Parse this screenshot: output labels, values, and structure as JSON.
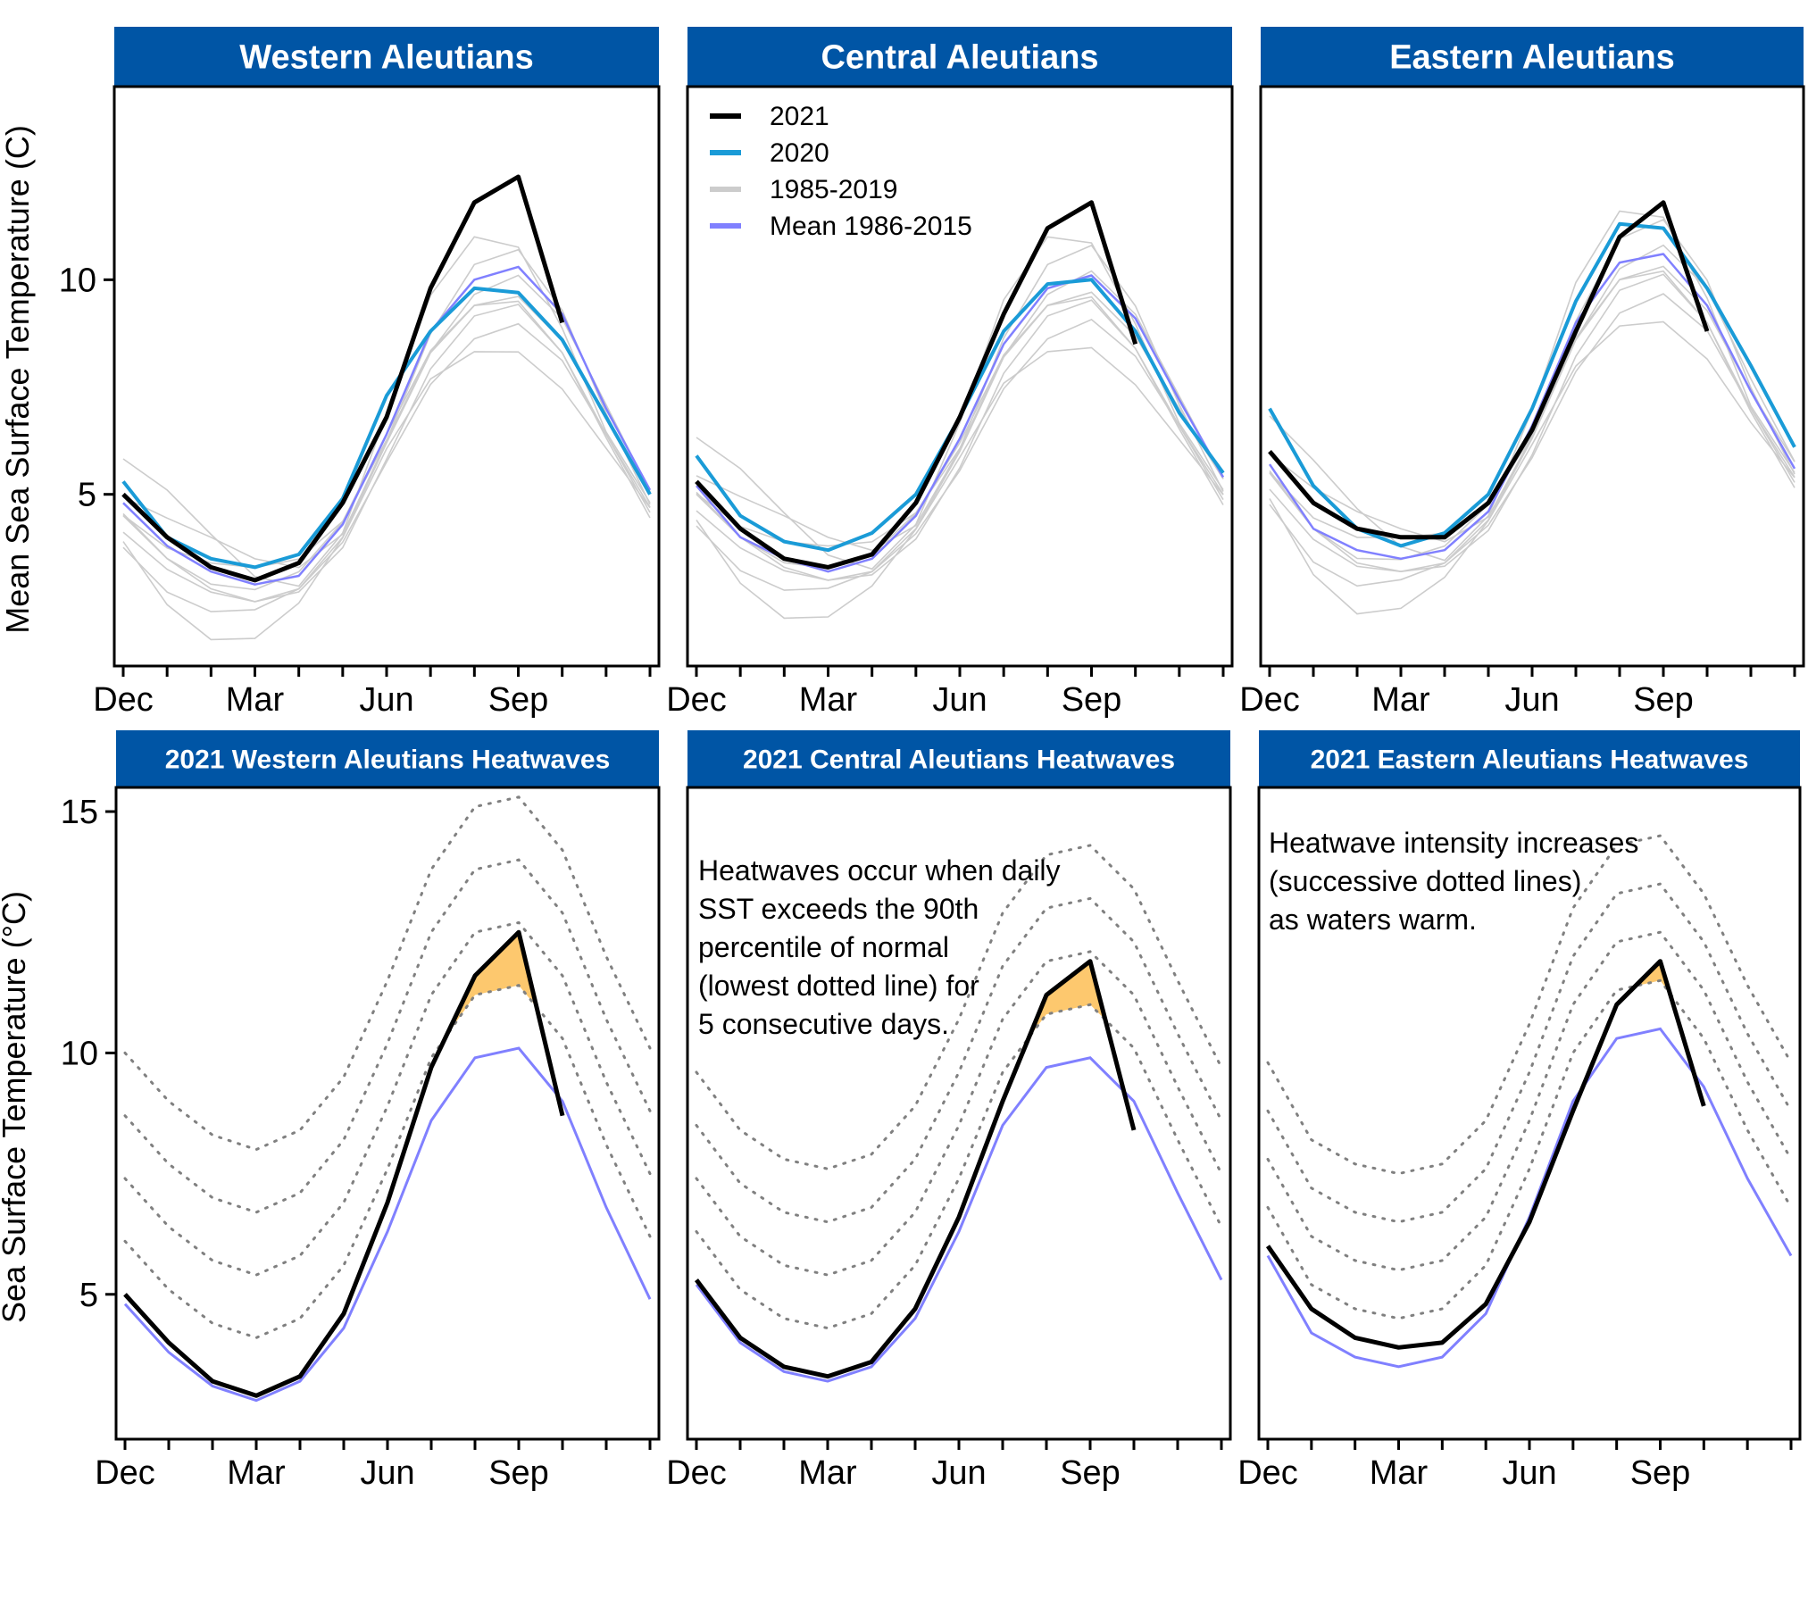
{
  "figure": {
    "top_ylabel": "Mean Sea Surface Temperature (C)",
    "bottom_ylabel": "Sea Surface Temperature (°C)"
  },
  "chart_data": [
    {
      "type": "line",
      "title": "Western Aleutians",
      "x": [
        "Dec",
        "Jan",
        "Feb",
        "Mar",
        "Apr",
        "May",
        "Jun",
        "Jul",
        "Aug",
        "Sep",
        "Oct",
        "Nov",
        "Dec"
      ],
      "xtick_labels": [
        "Dec",
        "Mar",
        "Jun",
        "Sep"
      ],
      "ylim": [
        1.0,
        14.5
      ],
      "yticks": [
        5,
        10
      ],
      "series": [
        {
          "name": "2021",
          "color": "#000000",
          "values": [
            5.0,
            4.0,
            3.3,
            3.0,
            3.4,
            4.8,
            6.8,
            9.8,
            11.8,
            12.4,
            9.0,
            null,
            null
          ]
        },
        {
          "name": "2020",
          "color": "#1a9bd7",
          "values": [
            5.3,
            4.0,
            3.5,
            3.3,
            3.6,
            4.9,
            7.3,
            8.8,
            9.8,
            9.7,
            8.6,
            6.8,
            5.0
          ]
        },
        {
          "name": "1985-2019",
          "color": "#cccccc",
          "values": [
            4.5,
            3.5,
            2.8,
            2.5,
            2.8,
            4.0,
            6.2,
            8.3,
            9.4,
            9.5,
            8.3,
            6.4,
            4.7
          ]
        },
        {
          "name": "Mean 1986-2015",
          "color": "#8080ff",
          "values": [
            4.8,
            3.8,
            3.2,
            2.9,
            3.1,
            4.3,
            6.4,
            8.8,
            10.0,
            10.3,
            9.2,
            7.0,
            5.1
          ]
        }
      ]
    },
    {
      "type": "line",
      "title": "Central Aleutians",
      "x": [
        "Dec",
        "Jan",
        "Feb",
        "Mar",
        "Apr",
        "May",
        "Jun",
        "Jul",
        "Aug",
        "Sep",
        "Oct",
        "Nov",
        "Dec"
      ],
      "xtick_labels": [
        "Dec",
        "Mar",
        "Jun",
        "Sep"
      ],
      "ylim": [
        1.0,
        14.5
      ],
      "yticks": [
        5,
        10
      ],
      "series": [
        {
          "name": "2021",
          "color": "#000000",
          "values": [
            5.3,
            4.2,
            3.5,
            3.3,
            3.6,
            4.8,
            6.8,
            9.2,
            11.2,
            11.8,
            8.5,
            null,
            null
          ]
        },
        {
          "name": "2020",
          "color": "#1a9bd7",
          "values": [
            5.9,
            4.5,
            3.9,
            3.7,
            4.1,
            5.0,
            6.8,
            8.8,
            9.9,
            10.0,
            8.8,
            6.9,
            5.5
          ]
        },
        {
          "name": "1985-2019",
          "color": "#cccccc",
          "values": [
            5.0,
            4.0,
            3.3,
            3.0,
            3.2,
            4.2,
            6.0,
            8.2,
            9.4,
            9.6,
            8.4,
            6.6,
            5.0
          ]
        },
        {
          "name": "Mean 1986-2015",
          "color": "#8080ff",
          "values": [
            5.2,
            4.0,
            3.5,
            3.2,
            3.5,
            4.5,
            6.3,
            8.5,
            9.8,
            10.1,
            9.1,
            7.2,
            5.4
          ]
        }
      ]
    },
    {
      "type": "line",
      "title": "Eastern Aleutians",
      "x": [
        "Dec",
        "Jan",
        "Feb",
        "Mar",
        "Apr",
        "May",
        "Jun",
        "Jul",
        "Aug",
        "Sep",
        "Oct",
        "Nov",
        "Dec"
      ],
      "xtick_labels": [
        "Dec",
        "Mar",
        "Jun",
        "Sep"
      ],
      "ylim": [
        1.0,
        14.5
      ],
      "yticks": [
        5,
        10
      ],
      "series": [
        {
          "name": "2021",
          "color": "#000000",
          "values": [
            6.0,
            4.8,
            4.2,
            4.0,
            4.0,
            4.8,
            6.5,
            8.8,
            11.0,
            11.8,
            8.8,
            null,
            null
          ]
        },
        {
          "name": "2020",
          "color": "#1a9bd7",
          "values": [
            7.0,
            5.2,
            4.2,
            3.8,
            4.1,
            5.0,
            7.0,
            9.5,
            11.3,
            11.2,
            9.8,
            8.0,
            6.1
          ]
        },
        {
          "name": "1985-2019",
          "color": "#cccccc",
          "values": [
            5.5,
            4.2,
            3.4,
            3.2,
            3.4,
            4.4,
            6.3,
            8.6,
            10.0,
            10.2,
            9.0,
            7.0,
            5.4
          ]
        },
        {
          "name": "Mean 1986-2015",
          "color": "#8080ff",
          "values": [
            5.7,
            4.2,
            3.7,
            3.5,
            3.7,
            4.6,
            6.6,
            9.0,
            10.4,
            10.6,
            9.4,
            7.4,
            5.6
          ]
        }
      ]
    },
    {
      "type": "area",
      "title": "2021 Western Aleutians Heatwaves",
      "x": [
        "Dec",
        "Jan",
        "Feb",
        "Mar",
        "Apr",
        "May",
        "Jun",
        "Jul",
        "Aug",
        "Sep",
        "Oct",
        "Nov",
        "Dec"
      ],
      "xtick_labels": [
        "Dec",
        "Mar",
        "Jun",
        "Sep"
      ],
      "ylim": [
        2.0,
        15.5
      ],
      "yticks": [
        5,
        10,
        15
      ],
      "annotation": "",
      "mean": [
        4.8,
        3.8,
        3.1,
        2.8,
        3.2,
        4.3,
        6.3,
        8.6,
        9.9,
        10.1,
        9.0,
        6.8,
        4.9
      ],
      "threshold_offsets": [
        1.3,
        2.6,
        3.9,
        5.2
      ],
      "sst_2021": [
        5.0,
        4.0,
        3.2,
        2.9,
        3.3,
        4.6,
        6.9,
        9.7,
        11.6,
        12.5,
        8.7,
        null,
        null
      ]
    },
    {
      "type": "area",
      "title": "2021 Central Aleutians Heatwaves",
      "x": [
        "Dec",
        "Jan",
        "Feb",
        "Mar",
        "Apr",
        "May",
        "Jun",
        "Jul",
        "Aug",
        "Sep",
        "Oct",
        "Nov",
        "Dec"
      ],
      "xtick_labels": [
        "Dec",
        "Mar",
        "Jun",
        "Sep"
      ],
      "ylim": [
        2.0,
        15.5
      ],
      "yticks": [
        5,
        10,
        15
      ],
      "annotation": [
        "Heatwaves occur when daily",
        "SST exceeds the 90th",
        "percentile of normal",
        "(lowest dotted line) for",
        "5 consecutive days."
      ],
      "mean": [
        5.2,
        4.0,
        3.4,
        3.2,
        3.5,
        4.5,
        6.3,
        8.5,
        9.7,
        9.9,
        9.0,
        7.1,
        5.3
      ],
      "threshold_offsets": [
        1.1,
        2.2,
        3.3,
        4.4
      ],
      "sst_2021": [
        5.3,
        4.1,
        3.5,
        3.3,
        3.6,
        4.7,
        6.6,
        9.0,
        11.2,
        11.9,
        8.4,
        null,
        null
      ]
    },
    {
      "type": "area",
      "title": "2021 Eastern Aleutians Heatwaves",
      "x": [
        "Dec",
        "Jan",
        "Feb",
        "Mar",
        "Apr",
        "May",
        "Jun",
        "Jul",
        "Aug",
        "Sep",
        "Oct",
        "Nov",
        "Dec"
      ],
      "xtick_labels": [
        "Dec",
        "Mar",
        "Jun",
        "Sep"
      ],
      "ylim": [
        2.0,
        15.5
      ],
      "yticks": [
        5,
        10,
        15
      ],
      "annotation": [
        "Heatwave intensity increases",
        "(successive dotted lines)",
        "as waters warm."
      ],
      "mean": [
        5.8,
        4.2,
        3.7,
        3.5,
        3.7,
        4.6,
        6.6,
        9.0,
        10.3,
        10.5,
        9.3,
        7.4,
        5.8
      ],
      "threshold_offsets": [
        1.0,
        2.0,
        3.0,
        4.0
      ],
      "sst_2021": [
        6.0,
        4.7,
        4.1,
        3.9,
        4.0,
        4.8,
        6.5,
        8.8,
        11.0,
        11.9,
        8.9,
        null,
        null
      ]
    }
  ]
}
